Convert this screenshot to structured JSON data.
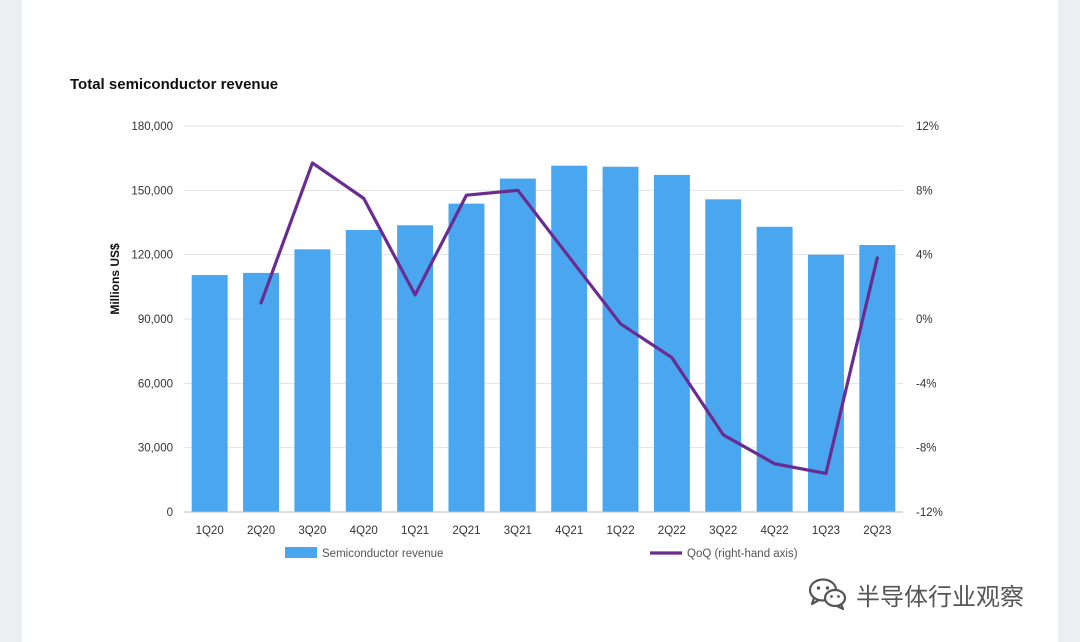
{
  "chart_data": {
    "type": "bar",
    "title": "Total semiconductor revenue",
    "ylabel": "Millions US$",
    "y2label": "",
    "categories": [
      "1Q20",
      "2Q20",
      "3Q20",
      "4Q20",
      "1Q21",
      "2Q21",
      "3Q21",
      "4Q21",
      "1Q22",
      "2Q22",
      "3Q22",
      "4Q22",
      "1Q23",
      "2Q23"
    ],
    "ylim": [
      0,
      180000
    ],
    "y2lim": [
      -12,
      12
    ],
    "yticks": [
      0,
      30000,
      60000,
      90000,
      120000,
      150000,
      180000
    ],
    "ytick_labels": [
      "0",
      "30,000",
      "60,000",
      "90,000",
      "120,000",
      "150,000",
      "180,000"
    ],
    "y2ticks": [
      -12,
      -8,
      -4,
      0,
      4,
      8,
      12
    ],
    "y2tick_labels": [
      "-12%",
      "-8%",
      "-4%",
      "0%",
      "4%",
      "8%",
      "12%"
    ],
    "grid": true,
    "legend_position": "bottom",
    "series": [
      {
        "name": "Semiconductor revenue",
        "type": "bar",
        "axis": "left",
        "color": "#4aa6ee",
        "values": [
          110500,
          111500,
          122500,
          131500,
          133700,
          143800,
          155500,
          161500,
          161000,
          157200,
          145800,
          133000,
          120000,
          124500
        ]
      },
      {
        "name": "QoQ (right-hand axis)",
        "type": "line",
        "axis": "right",
        "color": "#6a2c91",
        "values": [
          null,
          1.0,
          9.7,
          7.5,
          1.5,
          7.7,
          8.0,
          null,
          -0.3,
          -2.4,
          -7.2,
          -9.0,
          -9.6,
          3.8
        ]
      }
    ]
  },
  "watermark": {
    "text": "半导体行业观察",
    "icon": "wechat-logo-icon"
  }
}
